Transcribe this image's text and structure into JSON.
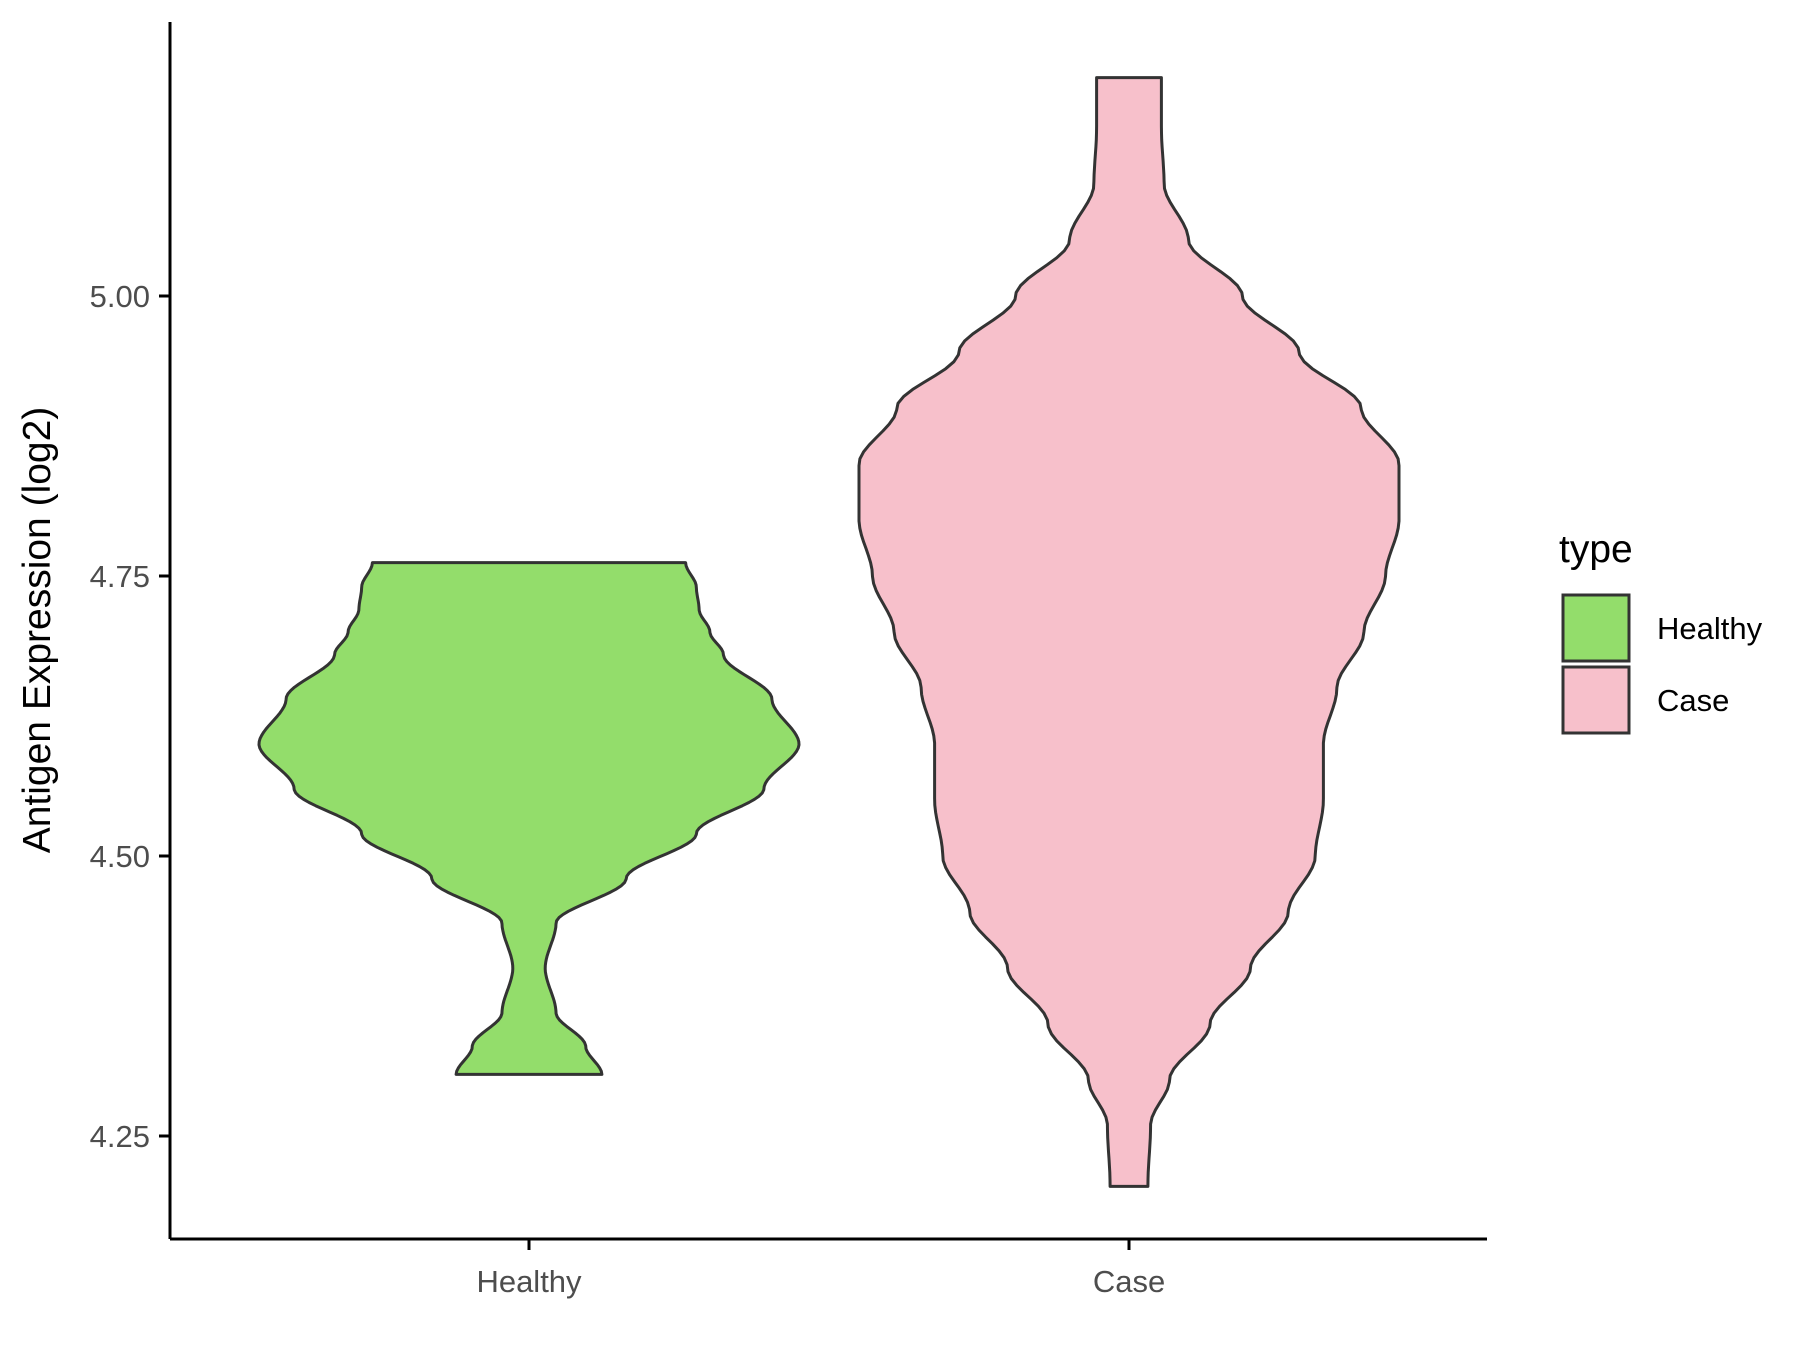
{
  "chart_data": {
    "type": "violin",
    "title": "",
    "xlabel": "",
    "ylabel": "Antigen Expression (log2)",
    "categories": [
      "Healthy",
      "Case"
    ],
    "ylim": [
      4.17,
      5.26
    ],
    "yticks": [
      4.25,
      4.5,
      4.75,
      5.0
    ],
    "ytick_labels": [
      "4.25",
      "4.50",
      "4.75",
      "5.00"
    ],
    "grid": false,
    "legend": {
      "title": "type",
      "position": "right",
      "entries": [
        {
          "label": "Healthy",
          "color": "#93dd6b"
        },
        {
          "label": "Case",
          "color": "#f7c0cb"
        }
      ]
    },
    "series": [
      {
        "name": "Healthy",
        "color": "#93dd6b",
        "ymin": 4.305,
        "ymax": 4.762,
        "density_profile": [
          [
            4.305,
            0.27
          ],
          [
            4.33,
            0.21
          ],
          [
            4.36,
            0.1
          ],
          [
            4.4,
            0.06
          ],
          [
            4.44,
            0.1
          ],
          [
            4.48,
            0.36
          ],
          [
            4.52,
            0.62
          ],
          [
            4.56,
            0.87
          ],
          [
            4.6,
            1.0
          ],
          [
            4.64,
            0.9
          ],
          [
            4.68,
            0.72
          ],
          [
            4.7,
            0.67
          ],
          [
            4.72,
            0.63
          ],
          [
            4.74,
            0.62
          ],
          [
            4.762,
            0.58
          ]
        ]
      },
      {
        "name": "Case",
        "color": "#f7c0cb",
        "ymin": 4.205,
        "ymax": 5.195,
        "density_profile": [
          [
            4.205,
            0.07
          ],
          [
            4.26,
            0.08
          ],
          [
            4.3,
            0.15
          ],
          [
            4.35,
            0.3
          ],
          [
            4.4,
            0.45
          ],
          [
            4.45,
            0.59
          ],
          [
            4.5,
            0.69
          ],
          [
            4.55,
            0.72
          ],
          [
            4.6,
            0.72
          ],
          [
            4.65,
            0.77
          ],
          [
            4.7,
            0.87
          ],
          [
            4.75,
            0.95
          ],
          [
            4.8,
            1.0
          ],
          [
            4.85,
            1.0
          ],
          [
            4.9,
            0.86
          ],
          [
            4.95,
            0.63
          ],
          [
            5.0,
            0.42
          ],
          [
            5.05,
            0.22
          ],
          [
            5.1,
            0.13
          ],
          [
            5.15,
            0.12
          ],
          [
            5.195,
            0.12
          ]
        ]
      }
    ]
  }
}
